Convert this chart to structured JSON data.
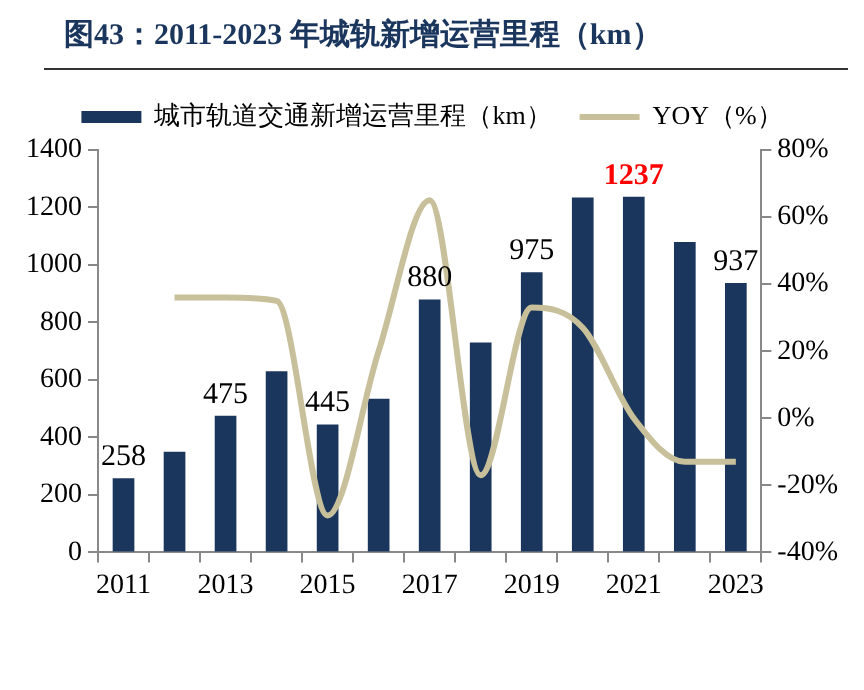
{
  "chart_data": {
    "type": "bar",
    "title": "图43：2011-2023 年城轨新增运营里程（km）",
    "categories": [
      "2011",
      null,
      "2013",
      null,
      "2015",
      null,
      "2017",
      null,
      "2019",
      null,
      "2021",
      null,
      "2023"
    ],
    "series": [
      {
        "name": "城市轨道交通新增运营里程（km）",
        "color": "#1b365d",
        "values": [
          258,
          350,
          475,
          630,
          445,
          535,
          880,
          730,
          975,
          1235,
          1237,
          1080,
          937
        ],
        "value_labels": [
          "258",
          null,
          "475",
          null,
          "445",
          null,
          "880",
          null,
          "975",
          null,
          "1237",
          null,
          "937"
        ]
      },
      {
        "name": "YOY（%）",
        "type": "line",
        "axis": "y2",
        "color": "#c8c09a",
        "values": [
          null,
          36,
          36,
          35,
          -29,
          20,
          65,
          -17,
          33,
          27,
          0,
          -13,
          -13
        ]
      }
    ],
    "ylim": [
      0,
      1400
    ],
    "yticks": [
      0,
      200,
      400,
      600,
      800,
      1000,
      1200,
      1400
    ],
    "y2lim": [
      -40,
      80
    ],
    "y2ticks": [
      {
        "value": -40,
        "label": "-40%"
      },
      {
        "value": -20,
        "label": "-20%"
      },
      {
        "value": 0,
        "label": "0%"
      },
      {
        "value": 20,
        "label": "20%"
      },
      {
        "value": 40,
        "label": "40%"
      },
      {
        "value": 60,
        "label": "60%"
      },
      {
        "value": 80,
        "label": "80%"
      }
    ],
    "grid": false,
    "legend": "top",
    "marker": "none",
    "line_style": "solid"
  }
}
